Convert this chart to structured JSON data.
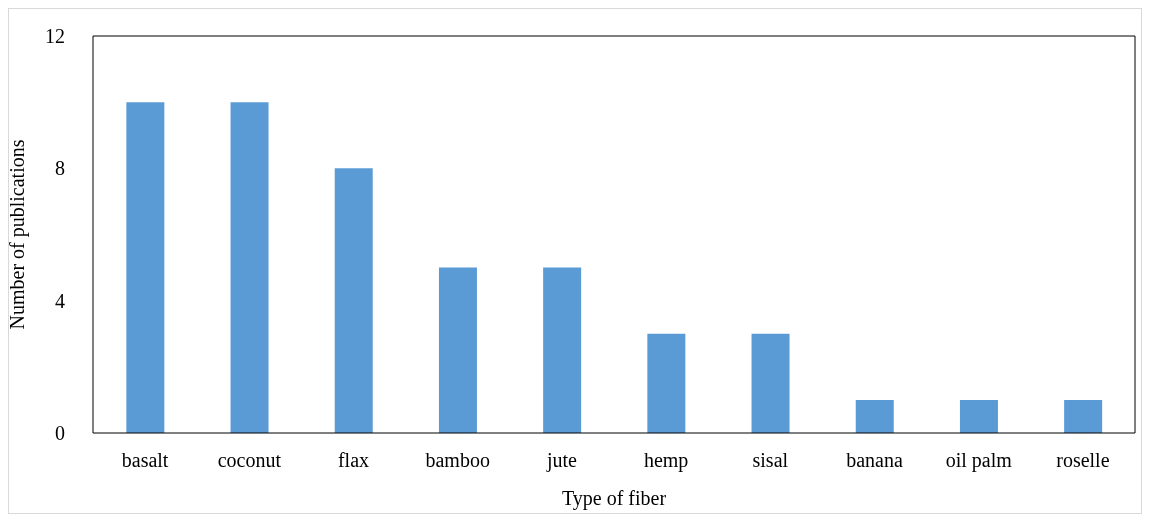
{
  "chart_data": {
    "type": "bar",
    "xlabel": "Type of fiber",
    "ylabel": "Number of publications",
    "categories": [
      "basalt",
      "coconut",
      "flax",
      "bamboo",
      "jute",
      "hemp",
      "sisal",
      "banana",
      "oil palm",
      "roselle"
    ],
    "values": [
      10,
      10,
      8,
      5,
      5,
      3,
      3,
      1,
      1,
      1
    ],
    "color": "#5b9bd5",
    "ylim": [
      0,
      12
    ],
    "yticks": [
      0,
      4,
      8,
      12
    ],
    "grid": false
  }
}
